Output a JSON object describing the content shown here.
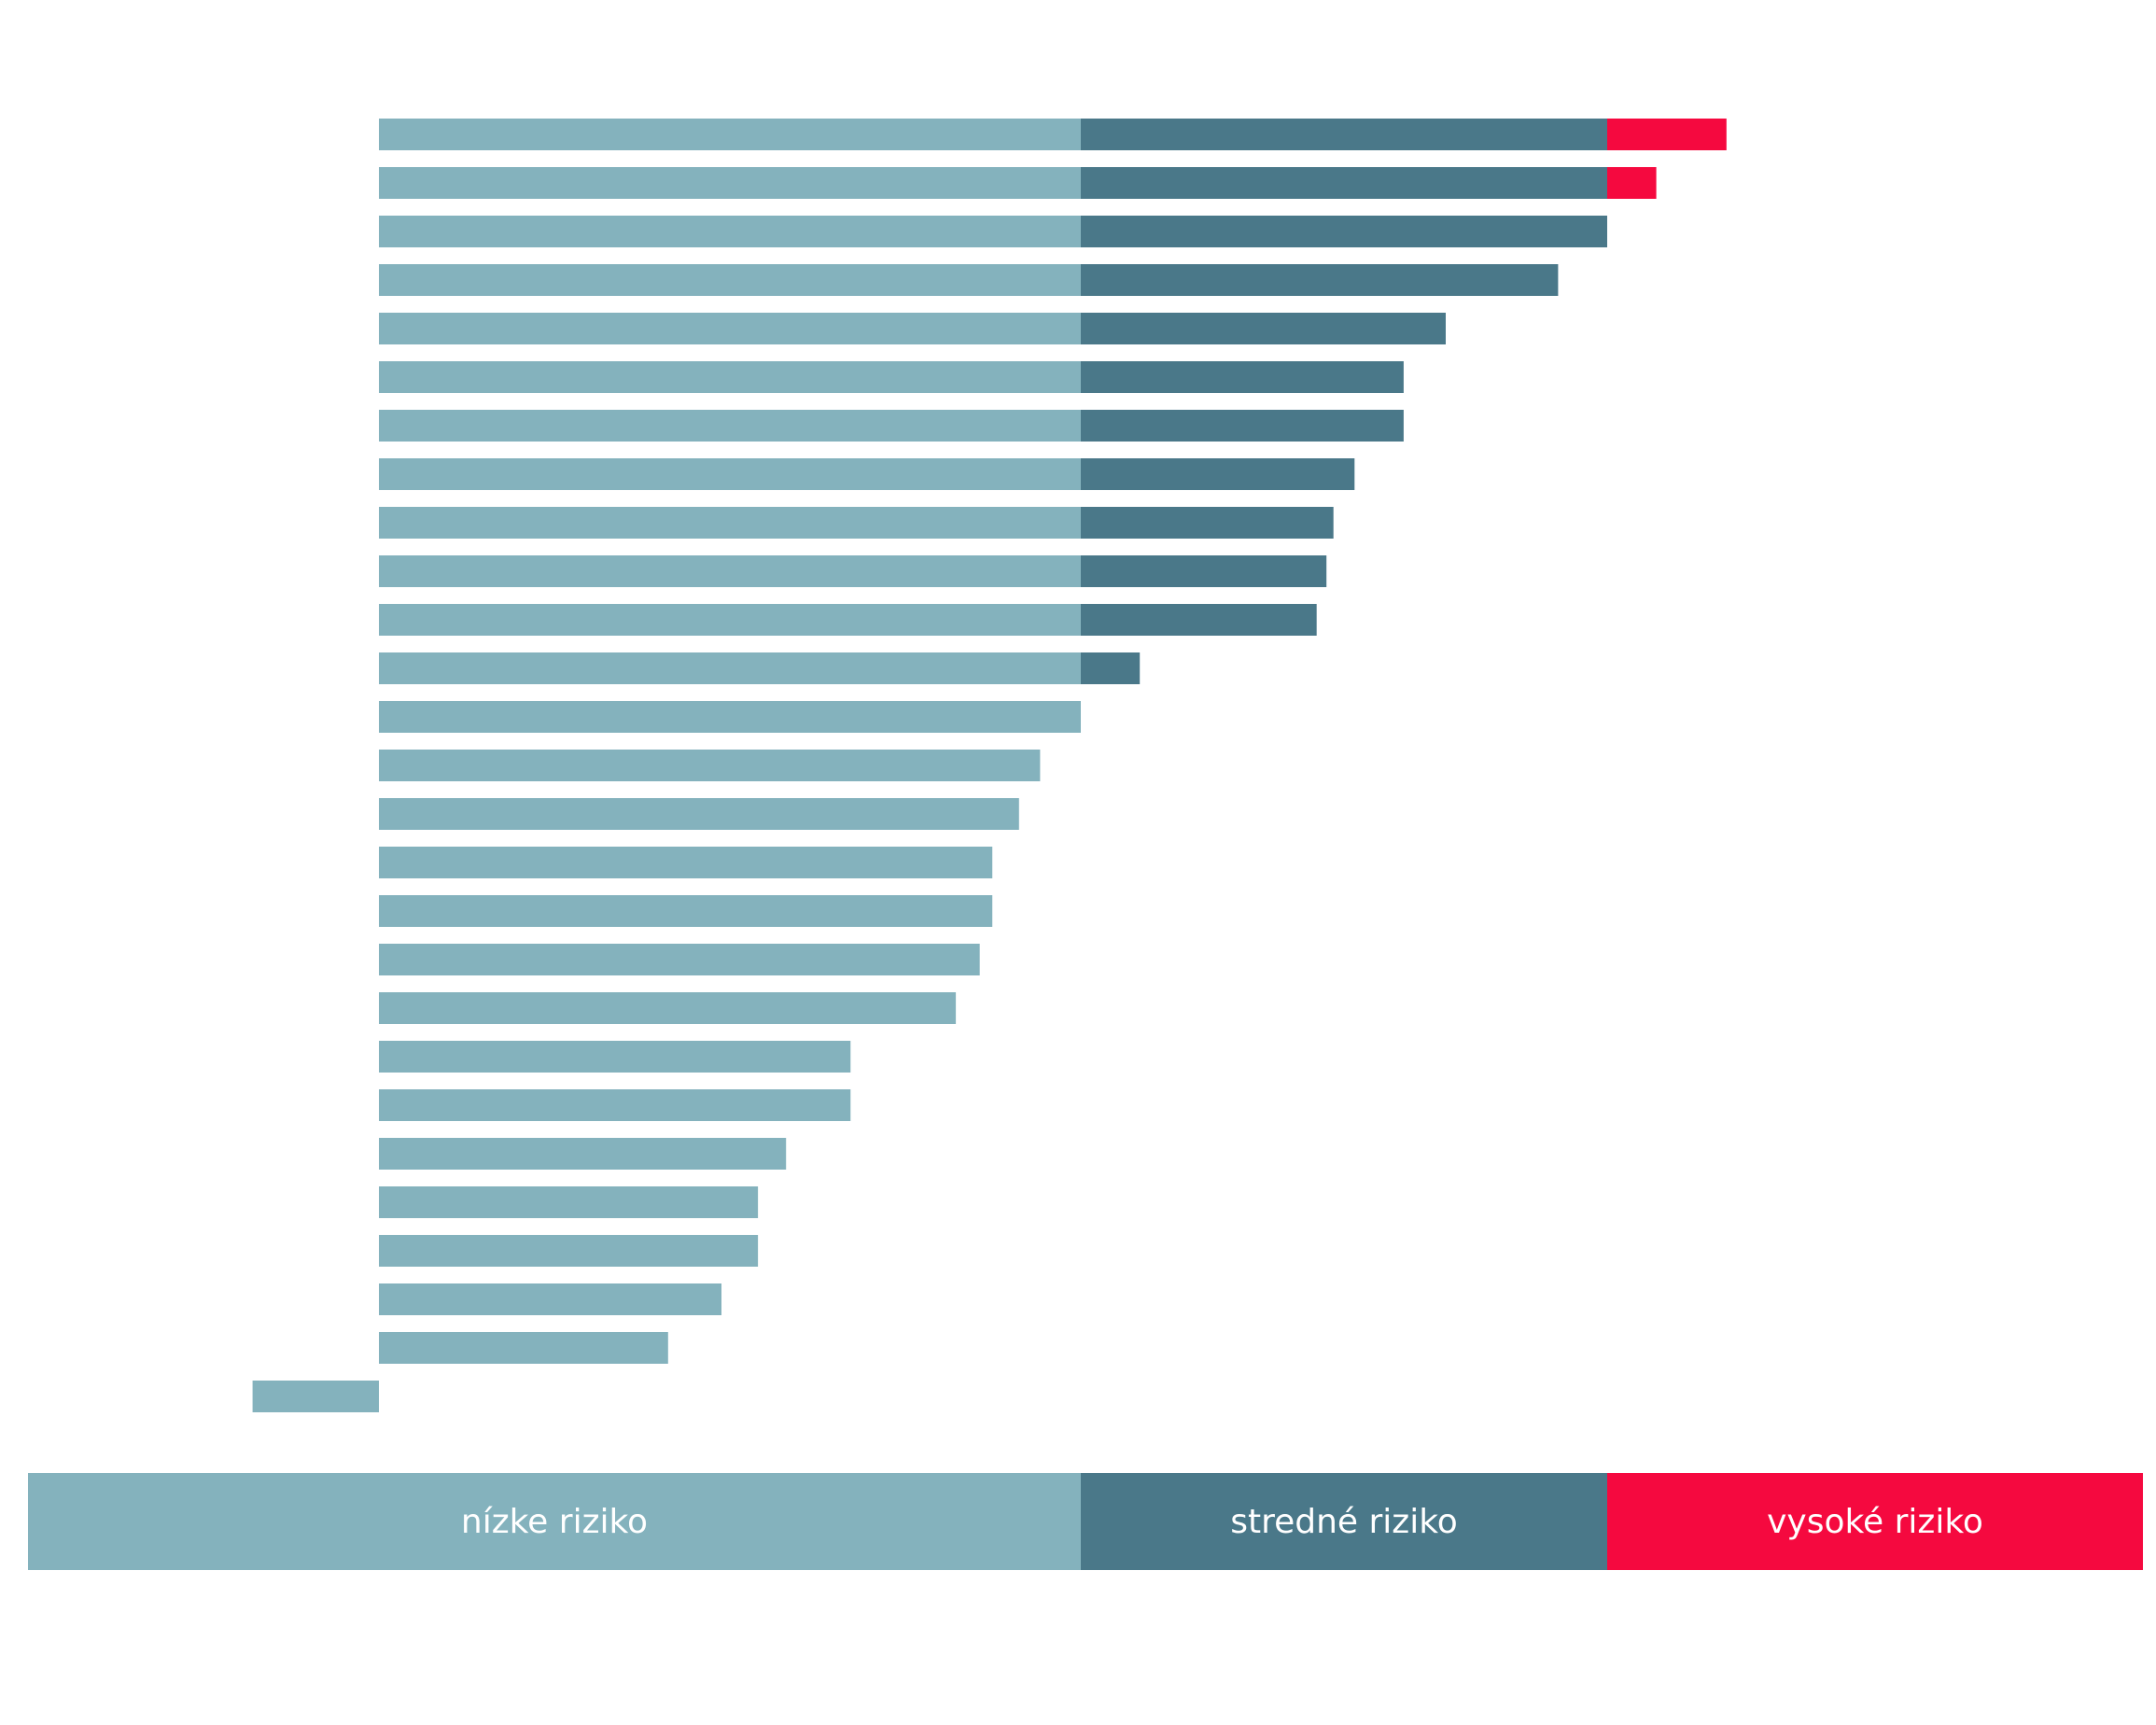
{
  "colors": {
    "low": "#84b2bd",
    "medium": "#4a7889",
    "high": "#f5093f",
    "legend_text": "#ffffff"
  },
  "chart_data": {
    "type": "bar",
    "orientation": "horizontal",
    "stacked": true,
    "title": "",
    "xlabel": "",
    "ylabel": "",
    "xlim": [
      -1,
      11.5
    ],
    "grid": false,
    "legend_position": "bottom",
    "thresholds": {
      "low_medium": 5,
      "medium_high": 8.75
    },
    "values": [
      9.6,
      9.1,
      8.75,
      8.4,
      7.6,
      7.3,
      7.3,
      6.95,
      6.8,
      6.75,
      6.68,
      5.42,
      5.0,
      4.71,
      4.56,
      4.37,
      4.37,
      4.28,
      4.11,
      3.36,
      3.36,
      2.9,
      2.7,
      2.7,
      2.44,
      2.06,
      -0.9
    ],
    "series": [
      {
        "name": "nízke riziko",
        "key": "low"
      },
      {
        "name": "stredné riziko",
        "key": "medium"
      },
      {
        "name": "vysoké riziko",
        "key": "high"
      }
    ]
  },
  "legend": {
    "low": "nízke riziko",
    "medium": "stredné riziko",
    "high": "vysoké riziko"
  }
}
